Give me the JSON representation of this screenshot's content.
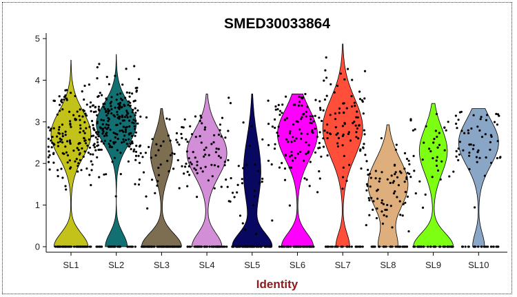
{
  "chart_data": {
    "type": "violin",
    "title": "SMED30033864",
    "xlabel": "Identity",
    "ylabel": "",
    "ylim": [
      0,
      5
    ],
    "yticks": [
      0,
      1,
      2,
      3,
      4,
      5
    ],
    "grid": false,
    "categories": [
      "SL1",
      "SL2",
      "SL3",
      "SL4",
      "SL5",
      "SL6",
      "SL7",
      "SL8",
      "SL9",
      "SL10"
    ],
    "colors": [
      "#C2C21A",
      "#137072",
      "#7D6E52",
      "#D28ED7",
      "#080860",
      "#FF00FF",
      "#FF4F3B",
      "#DEAF7C",
      "#7CFF12",
      "#8AA6C7"
    ],
    "xlabel_color": "#8B1A1A",
    "series": [
      {
        "category": "SL1",
        "max": 4.48,
        "zero_weight": 0.85,
        "dist": [
          [
            2.7,
            0.55,
            1.0
          ]
        ],
        "n_zero": 40,
        "n_pos": 150
      },
      {
        "category": "SL2",
        "max": 4.62,
        "zero_weight": 0.55,
        "dist": [
          [
            2.95,
            0.5,
            1.0
          ]
        ],
        "n_zero": 30,
        "n_pos": 220
      },
      {
        "category": "SL3",
        "max": 3.32,
        "zero_weight": 1.0,
        "dist": [
          [
            2.2,
            0.5,
            0.55
          ]
        ],
        "n_zero": 60,
        "n_pos": 50
      },
      {
        "category": "SL4",
        "max": 3.67,
        "zero_weight": 0.75,
        "dist": [
          [
            2.25,
            0.55,
            1.0
          ]
        ],
        "n_zero": 45,
        "n_pos": 70
      },
      {
        "category": "SL5",
        "max": 3.67,
        "zero_weight": 1.0,
        "dist": [
          [
            1.8,
            0.8,
            0.45
          ]
        ],
        "n_zero": 60,
        "n_pos": 35
      },
      {
        "category": "SL6",
        "max": 3.67,
        "zero_weight": 0.8,
        "dist": [
          [
            2.7,
            0.6,
            1.0
          ]
        ],
        "n_zero": 40,
        "n_pos": 100
      },
      {
        "category": "SL7",
        "max": 4.87,
        "zero_weight": 0.35,
        "dist": [
          [
            2.85,
            0.7,
            1.0
          ]
        ],
        "n_zero": 25,
        "n_pos": 90
      },
      {
        "category": "SL8",
        "max": 2.93,
        "zero_weight": 0.45,
        "dist": [
          [
            1.5,
            0.6,
            1.0
          ]
        ],
        "n_zero": 30,
        "n_pos": 75
      },
      {
        "category": "SL9",
        "max": 3.44,
        "zero_weight": 1.0,
        "dist": [
          [
            2.3,
            0.55,
            0.7
          ]
        ],
        "n_zero": 40,
        "n_pos": 40
      },
      {
        "category": "SL10",
        "max": 3.32,
        "zero_weight": 0.3,
        "dist": [
          [
            2.5,
            0.55,
            1.0
          ]
        ],
        "n_zero": 25,
        "n_pos": 55
      }
    ]
  }
}
